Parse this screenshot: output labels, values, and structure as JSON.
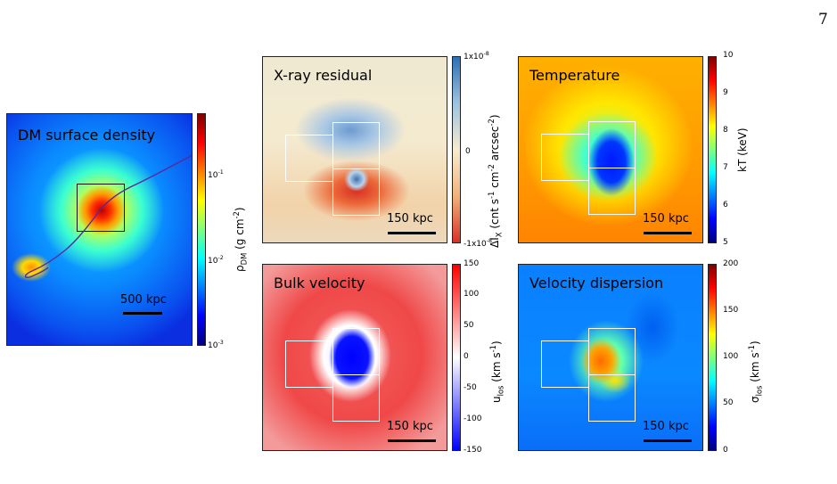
{
  "page_number": "7",
  "panels": {
    "dm": {
      "title": "DM surface density",
      "scale_label": "500 kpc",
      "cbar_label_html": "ρ<sub>DM</sub> (g cm<sup>-2</sup>)",
      "ticks": [
        "10<sup>-1</sup>",
        "10<sup>-2</sup>",
        "10<sup>-3</sup>"
      ]
    },
    "xray": {
      "title": "X-ray residual",
      "scale_label": "150 kpc",
      "cbar_label_html": "ΔI<sub>X</sub> (cnt s<sup>-1</sup> cm<sup>-2</sup> arcsec<sup>-2</sup>)",
      "ticks": [
        "1x10<sup>-8</sup>",
        "0",
        "-1x10<sup>-8</sup>"
      ]
    },
    "temp": {
      "title": "Temperature",
      "scale_label": "150 kpc",
      "cbar_label_html": "kT (keV)",
      "ticks": [
        "10",
        "9",
        "8",
        "7",
        "6",
        "5"
      ]
    },
    "bulk": {
      "title": "Bulk velocity",
      "scale_label": "150 kpc",
      "cbar_label_html": "u<sub>los</sub> (km s<sup>-1</sup>)",
      "ticks": [
        "150",
        "100",
        "50",
        "0",
        "-50",
        "-100",
        "-150"
      ]
    },
    "disp": {
      "title": "Velocity dispersion",
      "scale_label": "150 kpc",
      "cbar_label_html": "σ<sub>los</sub> (km s<sup>-1</sup>)",
      "ticks": [
        "200",
        "150",
        "100",
        "50",
        "0"
      ]
    }
  },
  "colors": {
    "jet": [
      "#00007f",
      "#0000ff",
      "#007fff",
      "#00ffff",
      "#7fff7f",
      "#ffff00",
      "#ff7f00",
      "#ff0000",
      "#7f0000"
    ],
    "diverging": [
      "#2c6fb5",
      "#9ec3e0",
      "#f6ecd0",
      "#f2b27a",
      "#d73027"
    ],
    "bwr": [
      "#0000ff",
      "#ffffff",
      "#ff0000"
    ]
  }
}
